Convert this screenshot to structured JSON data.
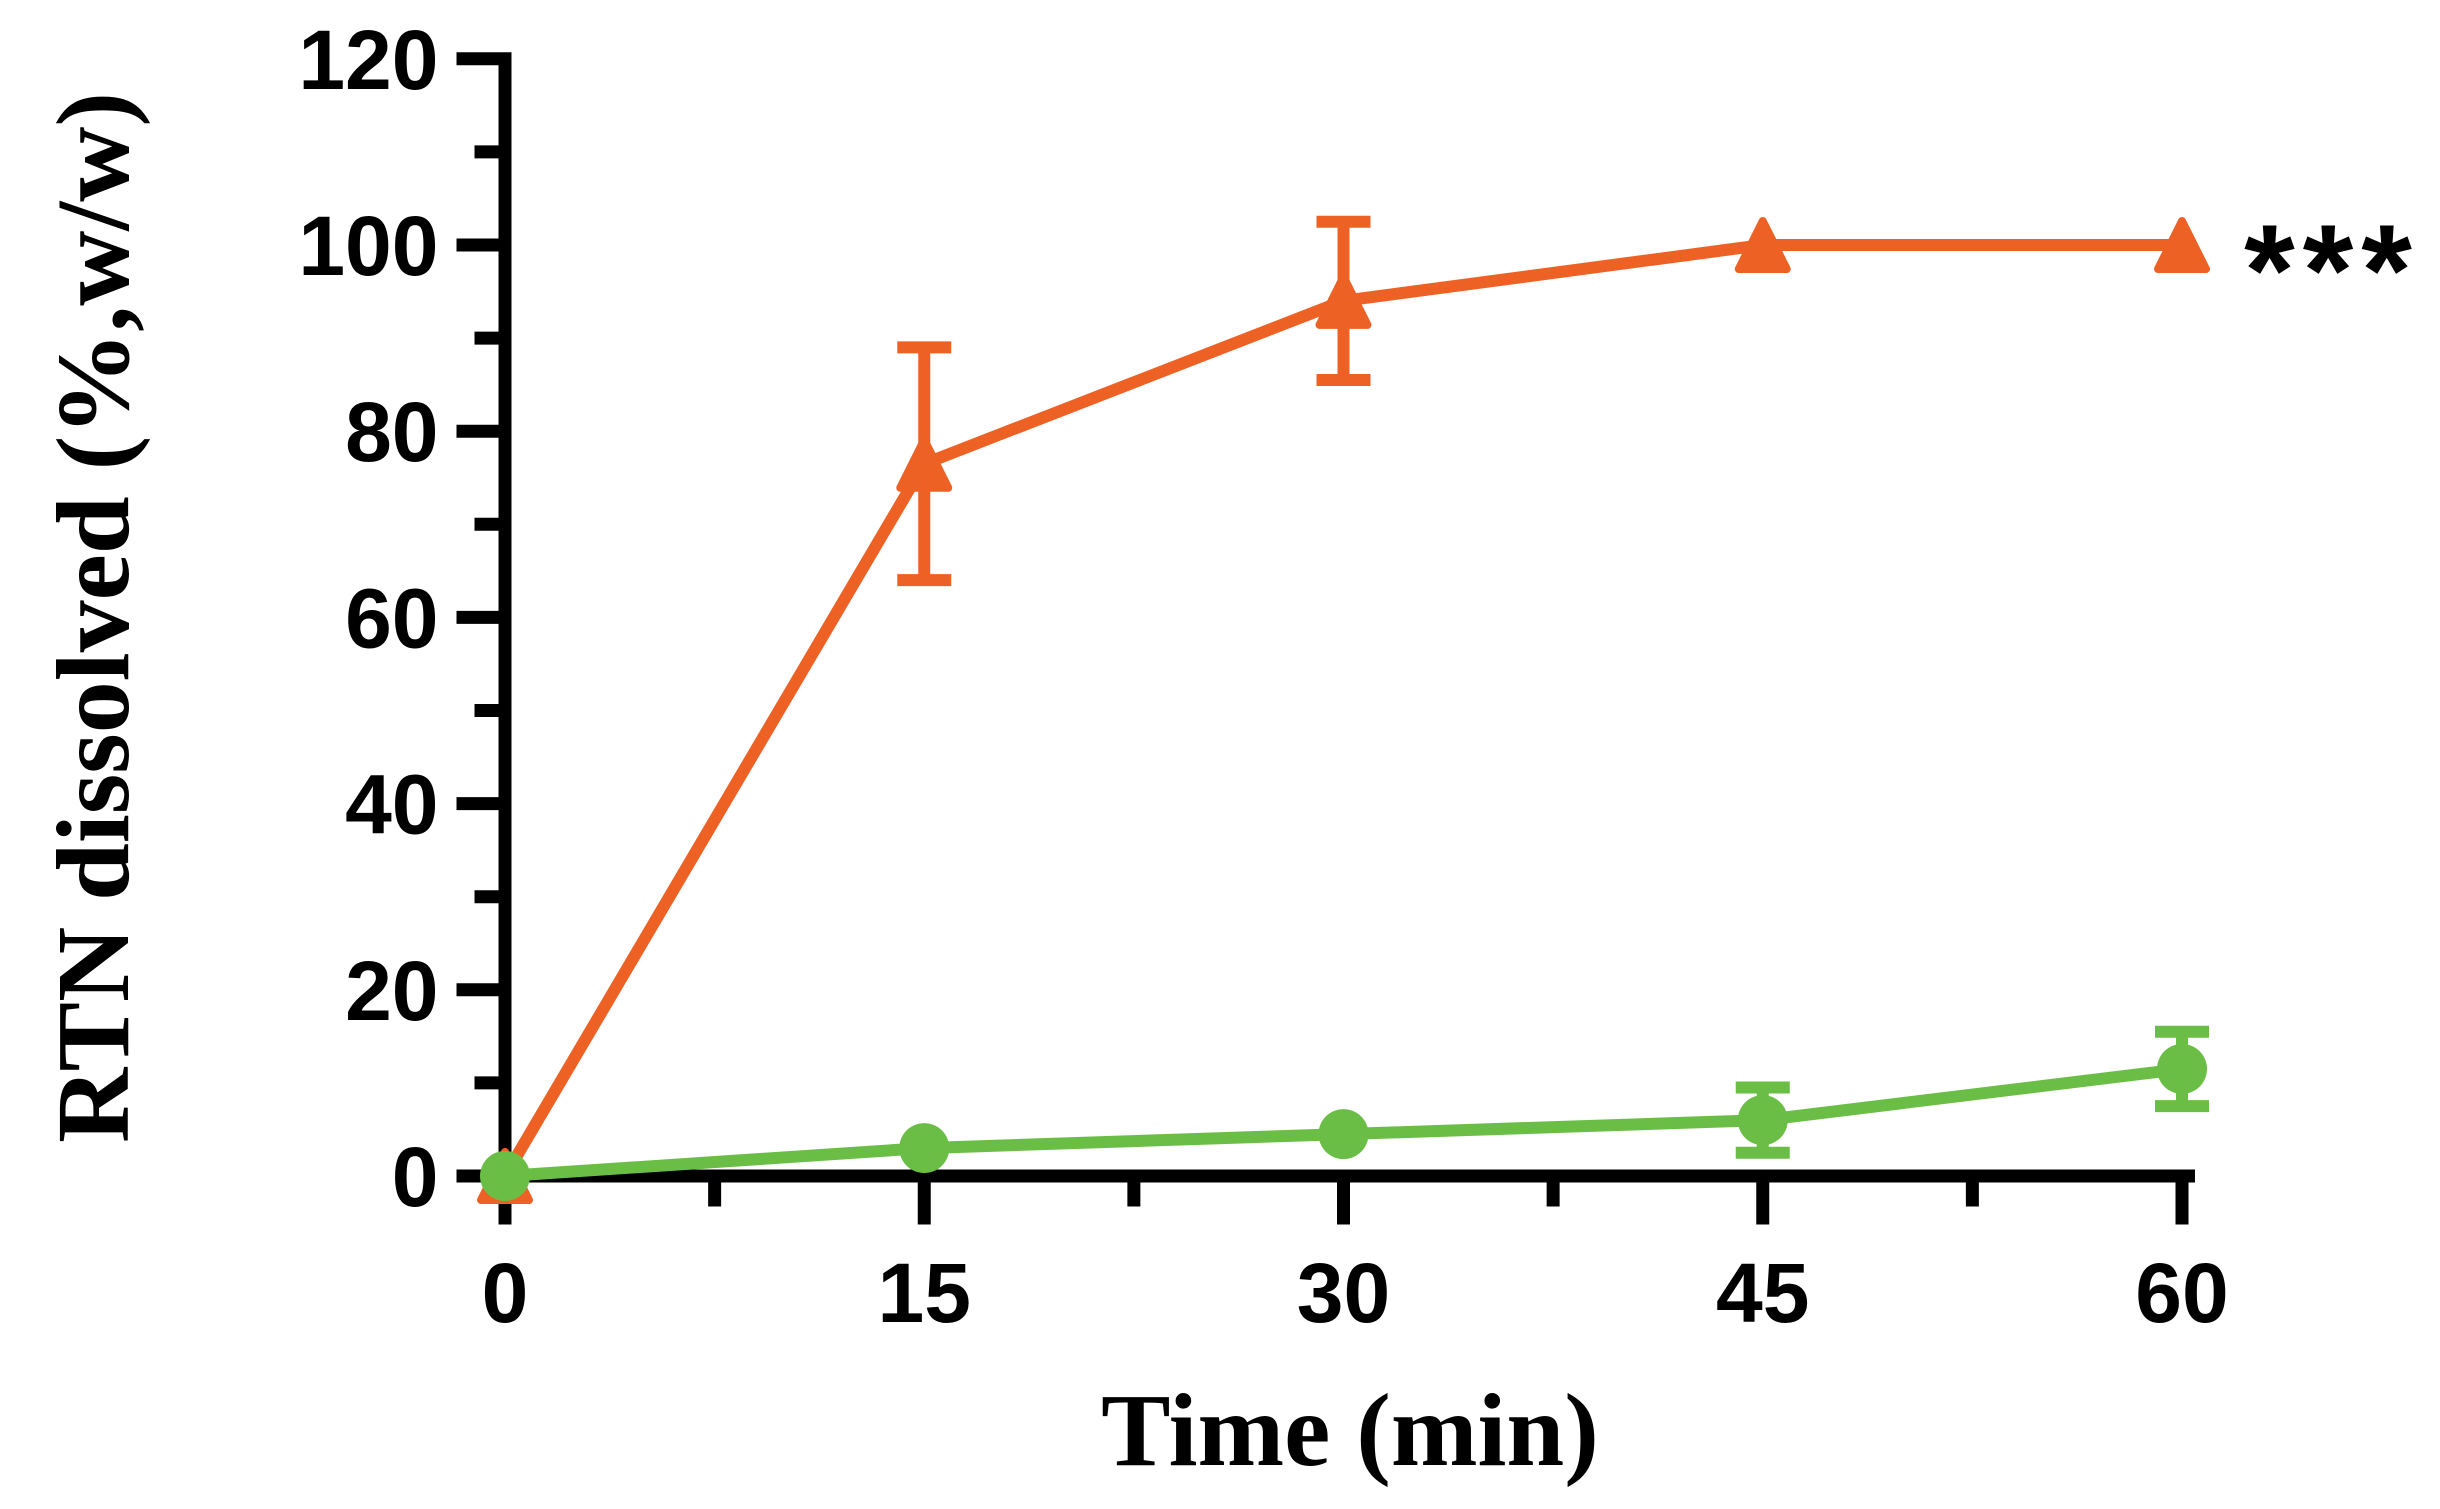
{
  "figure": {
    "background": "#FFFFFF",
    "axis_color": "#000000",
    "text_color": "#000000"
  },
  "chart_data": {
    "type": "line",
    "title": "",
    "xlabel": "Time (min)",
    "ylabel": "RTN dissolved (%,w/w)",
    "x": [
      0,
      15,
      30,
      45,
      60
    ],
    "xlim": [
      0,
      60
    ],
    "ylim": [
      0,
      120
    ],
    "x_major_ticks": [
      0,
      15,
      30,
      45,
      60
    ],
    "x_minor_ticks": [
      7.5,
      22.5,
      37.5,
      52.5
    ],
    "y_major_ticks": [
      0,
      20,
      40,
      60,
      80,
      100,
      120
    ],
    "y_minor_ticks": [
      10,
      30,
      50,
      70,
      90,
      110
    ],
    "grid": false,
    "legend": "none",
    "series": [
      {
        "id": "triangle-series",
        "marker": "triangle",
        "color": "#EE6125",
        "values": [
          0,
          76.5,
          94,
          100,
          100
        ],
        "errors": [
          0,
          12.5,
          8.5,
          0,
          0
        ]
      },
      {
        "id": "circle-series",
        "marker": "circle",
        "color": "#6ABE45",
        "values": [
          0,
          3,
          4.5,
          6,
          11.5
        ],
        "errors": [
          0,
          0,
          0,
          3.5,
          4
        ]
      }
    ],
    "annotation": {
      "text": "***",
      "anchor_x": 60,
      "anchor_y": 100
    }
  }
}
